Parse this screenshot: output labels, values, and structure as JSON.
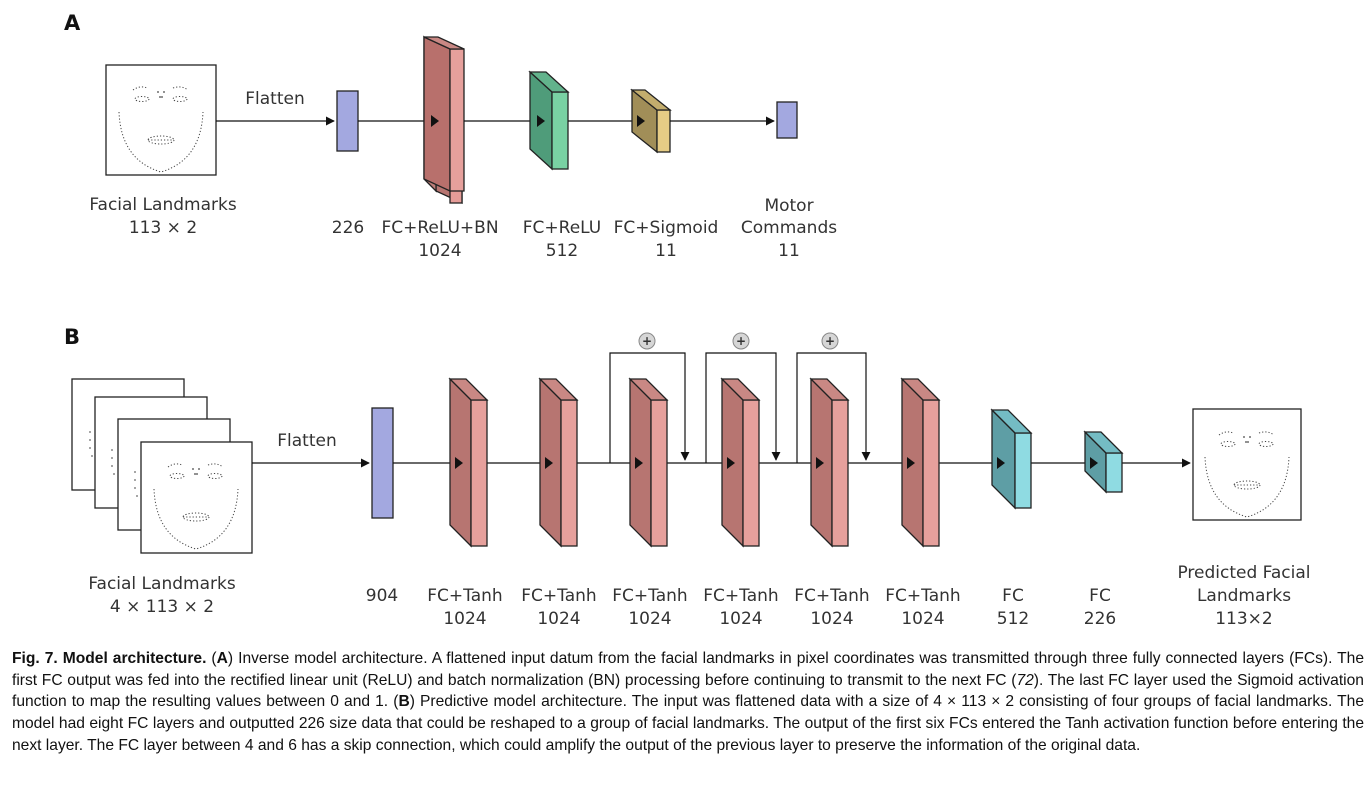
{
  "panel_a": {
    "label": "A",
    "flatten": "Flatten",
    "input": {
      "line1": "Facial Landmarks",
      "line2": "113 × 2"
    },
    "layers": [
      {
        "line1": "226",
        "line2": ""
      },
      {
        "line1": "FC+ReLU+BN",
        "line2": "1024"
      },
      {
        "line1": "FC+ReLU",
        "line2": "512"
      },
      {
        "line1": "FC+Sigmoid",
        "line2": "11"
      }
    ],
    "output": {
      "line1": "Motor",
      "line2": "Commands",
      "line3": "11"
    }
  },
  "panel_b": {
    "label": "B",
    "flatten": "Flatten",
    "input": {
      "line1": "Facial Landmarks",
      "line2": "4 × 113 × 2"
    },
    "skip_symbol": "+",
    "layers": [
      {
        "line1": "904",
        "line2": ""
      },
      {
        "line1": "FC+Tanh",
        "line2": "1024"
      },
      {
        "line1": "FC+Tanh",
        "line2": "1024"
      },
      {
        "line1": "FC+Tanh",
        "line2": "1024"
      },
      {
        "line1": "FC+Tanh",
        "line2": "1024"
      },
      {
        "line1": "FC+Tanh",
        "line2": "1024"
      },
      {
        "line1": "FC+Tanh",
        "line2": "1024"
      },
      {
        "line1": "FC",
        "line2": "512"
      },
      {
        "line1": "FC",
        "line2": "226"
      }
    ],
    "output": {
      "line1": "Predicted Facial",
      "line2": "Landmarks",
      "line3": "113×2"
    }
  },
  "caption": {
    "fig_label": "Fig. 7. Model architecture.",
    "p1": " (",
    "a": "A",
    "p2": ") Inverse model architecture. A flattened input datum from the facial landmarks in pixel coordinates was transmitted through three fully connected layers (FCs). The first FC output was fed into the rectified linear unit (ReLU) and batch normalization (BN) processing before continuing to transmit to the next FC (",
    "ref": "72",
    "p3": "). The last FC layer used the Sigmoid activation function to map the resulting values between 0 and 1. (",
    "b": "B",
    "p4": ") Predictive model architecture. The input was flattened data with a size of 4 × 113 × 2 consisting of four groups of facial landmarks. The model had eight FC layers and outputted 226 size data that could be reshaped to a group of facial landmarks. The output of the first six FCs entered the Tanh activation function before entering the next layer. The FC layer between 4 and 6 has a skip connection, which could amplify the output of the previous layer to preserve the information of the original data."
  }
}
